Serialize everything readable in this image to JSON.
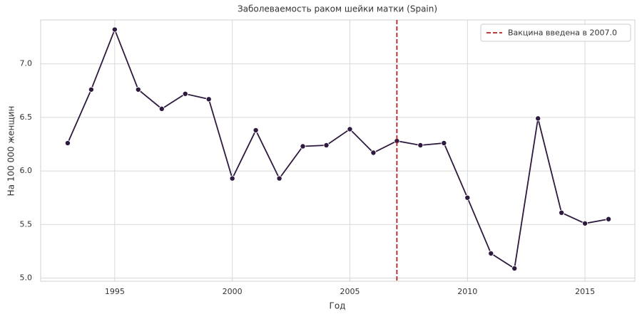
{
  "chart_data": {
    "type": "line",
    "title": "Заболеваемость раком шейки матки (Spain)",
    "x_label": "Год",
    "y_label": "На 100 000 женщин",
    "x": [
      1993,
      1994,
      1995,
      1996,
      1997,
      1998,
      1999,
      2000,
      2001,
      2002,
      2003,
      2004,
      2005,
      2006,
      2007,
      2008,
      2009,
      2010,
      2011,
      2012,
      2013,
      2014,
      2015,
      2016
    ],
    "series": [
      {
        "name": null,
        "color": "#2d1a3e",
        "values": [
          6.26,
          6.76,
          7.32,
          6.76,
          6.58,
          6.72,
          6.67,
          5.93,
          6.38,
          5.93,
          6.23,
          6.24,
          6.39,
          6.17,
          6.28,
          6.24,
          6.26,
          5.75,
          5.23,
          5.09,
          6.49,
          5.61,
          5.51,
          5.55
        ]
      }
    ],
    "vline": {
      "x": 2007,
      "label": "Вакцина введена в 2007.0",
      "color": "#b22222"
    },
    "xlim": [
      1991.85,
      2017.12
    ],
    "ylim": [
      4.97,
      7.41
    ],
    "xticks": [
      1995,
      2000,
      2005,
      2010,
      2015
    ],
    "yticks": [
      {
        "value": 5,
        "label": "5.0"
      },
      5.5,
      {
        "value": 6,
        "label": "6.0"
      },
      6.5,
      {
        "value": 7,
        "label": "7.0"
      }
    ],
    "grid": true,
    "legend_position": "upper right"
  }
}
